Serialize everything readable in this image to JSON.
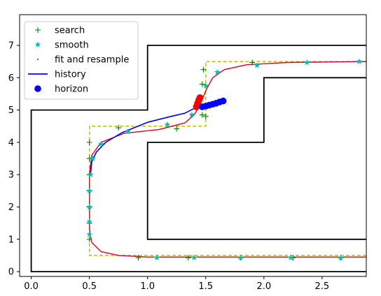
{
  "chart_data": {
    "type": "scatter",
    "title": "",
    "xlabel": "",
    "ylabel": "",
    "xlim": [
      -0.1,
      2.88
    ],
    "ylim": [
      -0.15,
      7.95
    ],
    "xticks": [
      0.0,
      0.5,
      1.0,
      1.5,
      2.0,
      2.5
    ],
    "xtick_labels": [
      "0.0",
      "0.5",
      "1.0",
      "1.5",
      "2.0",
      "2.5"
    ],
    "yticks": [
      0,
      1,
      2,
      3,
      4,
      5,
      6,
      7
    ],
    "ytick_labels": [
      "0",
      "1",
      "2",
      "3",
      "4",
      "5",
      "6",
      "7"
    ],
    "grid": false,
    "legend_position": "top-left",
    "legend": [
      {
        "label": "search",
        "marker": "plus",
        "color": "#008000"
      },
      {
        "label": "smooth",
        "marker": "star",
        "color": "#00bfbf"
      },
      {
        "label": "fit and resample",
        "marker": "dot",
        "color": "#000000"
      },
      {
        "label": "history",
        "marker": "line",
        "color": "#0000ff"
      },
      {
        "label": "horizon",
        "marker": "circle",
        "color": "#0000ff"
      }
    ],
    "walls": [
      {
        "name": "outer-boundary",
        "color": "#000000",
        "points": [
          [
            2.88,
            0
          ],
          [
            0,
            0
          ],
          [
            0,
            5
          ],
          [
            1,
            5
          ],
          [
            1,
            7
          ],
          [
            2.88,
            7
          ]
        ]
      },
      {
        "name": "inner-boundary",
        "color": "#000000",
        "points": [
          [
            2.88,
            1
          ],
          [
            1,
            1
          ],
          [
            1,
            4
          ],
          [
            2,
            4
          ],
          [
            2,
            6
          ],
          [
            2.88,
            6
          ]
        ]
      }
    ],
    "corridor": {
      "color": "#bfbf00",
      "points": [
        [
          2.88,
          0.5
        ],
        [
          0.5,
          0.5
        ],
        [
          0.5,
          4.5
        ],
        [
          1.5,
          4.5
        ],
        [
          1.5,
          6.5
        ],
        [
          2.88,
          6.5
        ]
      ]
    },
    "fit_path": {
      "color_outer": "#ff0000",
      "color_inner": "#800080",
      "points": [
        [
          2.88,
          0.45
        ],
        [
          1.0,
          0.45
        ],
        [
          0.75,
          0.5
        ],
        [
          0.6,
          0.62
        ],
        [
          0.52,
          0.9
        ],
        [
          0.5,
          1.3
        ],
        [
          0.5,
          3.0
        ],
        [
          0.52,
          3.6
        ],
        [
          0.6,
          4.0
        ],
        [
          0.8,
          4.28
        ],
        [
          1.1,
          4.4
        ],
        [
          1.32,
          4.6
        ],
        [
          1.4,
          4.85
        ],
        [
          1.45,
          5.15
        ],
        [
          1.5,
          5.6
        ],
        [
          1.56,
          6.0
        ],
        [
          1.66,
          6.25
        ],
        [
          1.85,
          6.4
        ],
        [
          2.2,
          6.47
        ],
        [
          2.88,
          6.5
        ]
      ]
    },
    "history": {
      "color": "#0000ff",
      "points": [
        [
          0.51,
          3.0
        ],
        [
          0.52,
          3.4
        ],
        [
          0.56,
          3.7
        ],
        [
          0.64,
          4.0
        ],
        [
          0.78,
          4.3
        ],
        [
          1.0,
          4.62
        ],
        [
          1.2,
          4.8
        ],
        [
          1.32,
          4.9
        ],
        [
          1.4,
          5.05
        ],
        [
          1.43,
          5.15
        ]
      ]
    },
    "horizon": {
      "color": "#0000ff",
      "points": [
        [
          1.47,
          5.1
        ],
        [
          1.5,
          5.12
        ],
        [
          1.53,
          5.15
        ],
        [
          1.56,
          5.18
        ],
        [
          1.59,
          5.21
        ],
        [
          1.62,
          5.25
        ],
        [
          1.65,
          5.28
        ]
      ]
    },
    "horizon_marker": {
      "color": "#ff0000",
      "points": [
        [
          1.42,
          5.1
        ],
        [
          1.43,
          5.2
        ],
        [
          1.44,
          5.3
        ],
        [
          1.45,
          5.38
        ]
      ]
    },
    "search_points": [
      [
        0.5,
        1.0
      ],
      [
        0.5,
        1.5
      ],
      [
        0.5,
        2.0
      ],
      [
        0.5,
        2.5
      ],
      [
        0.5,
        3.0
      ],
      [
        0.5,
        3.5
      ],
      [
        0.5,
        4.0
      ],
      [
        0.75,
        4.45
      ],
      [
        1.25,
        4.42
      ],
      [
        1.47,
        4.85
      ],
      [
        1.5,
        4.8
      ],
      [
        1.47,
        5.8
      ],
      [
        1.48,
        6.25
      ],
      [
        1.9,
        6.47
      ],
      [
        2.88,
        6.5
      ],
      [
        0.92,
        0.43
      ],
      [
        1.35,
        0.43
      ],
      [
        1.8,
        0.43
      ],
      [
        2.25,
        0.43
      ],
      [
        2.66,
        0.43
      ]
    ],
    "smooth_points": [
      [
        0.5,
        1.15
      ],
      [
        0.5,
        1.55
      ],
      [
        0.5,
        2.0
      ],
      [
        0.5,
        2.5
      ],
      [
        0.51,
        3.0
      ],
      [
        0.53,
        3.5
      ],
      [
        0.6,
        3.95
      ],
      [
        0.83,
        4.33
      ],
      [
        1.17,
        4.55
      ],
      [
        1.38,
        4.85
      ],
      [
        1.5,
        5.75
      ],
      [
        1.6,
        6.17
      ],
      [
        1.94,
        6.38
      ],
      [
        2.37,
        6.47
      ],
      [
        2.82,
        6.5
      ],
      [
        1.08,
        0.43
      ],
      [
        1.4,
        0.43
      ],
      [
        1.8,
        0.43
      ],
      [
        2.23,
        0.43
      ],
      [
        2.66,
        0.43
      ]
    ]
  }
}
